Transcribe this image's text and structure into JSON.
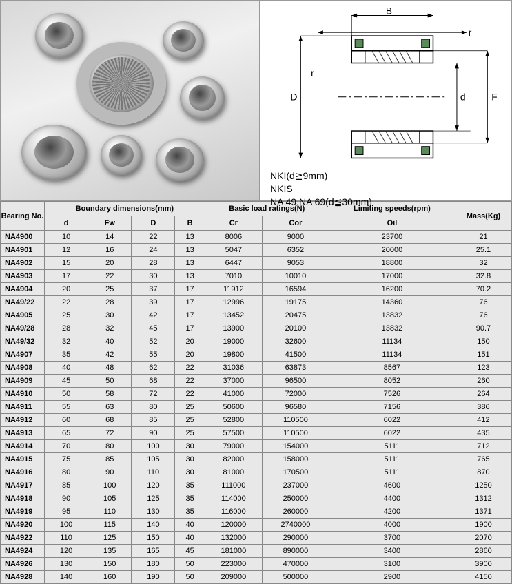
{
  "diagram": {
    "label_B": "B",
    "label_r1": "r",
    "label_r2": "r",
    "label_D": "D",
    "label_d": "d",
    "label_F": "F",
    "line1": "NKI(d≧9mm)",
    "line2": "NKIS",
    "line3": "NA 49.NA 69(d≦30mm)"
  },
  "table": {
    "header": {
      "bearing_no": "Bearing No.",
      "boundary": "Boundary dimensions(mm)",
      "basic_load": "Basic load ratings(N)",
      "limiting": "Limiting speeds(rpm)",
      "mass": "Mass(Kg)",
      "d": "d",
      "Fw": "Fw",
      "D": "D",
      "B": "B",
      "Cr": "Cr",
      "Cor": "Cor",
      "Oil": "Oil"
    },
    "rows": [
      [
        "NA4900",
        "10",
        "14",
        "22",
        "13",
        "8006",
        "9000",
        "23700",
        "21"
      ],
      [
        "NA4901",
        "12",
        "16",
        "24",
        "13",
        "5047",
        "6352",
        "20000",
        "25.1"
      ],
      [
        "NA4902",
        "15",
        "20",
        "28",
        "13",
        "6447",
        "9053",
        "18800",
        "32"
      ],
      [
        "NA4903",
        "17",
        "22",
        "30",
        "13",
        "7010",
        "10010",
        "17000",
        "32.8"
      ],
      [
        "NA4904",
        "20",
        "25",
        "37",
        "17",
        "11912",
        "16594",
        "16200",
        "70.2"
      ],
      [
        "NA49/22",
        "22",
        "28",
        "39",
        "17",
        "12996",
        "19175",
        "14360",
        "76"
      ],
      [
        "NA4905",
        "25",
        "30",
        "42",
        "17",
        "13452",
        "20475",
        "13832",
        "76"
      ],
      [
        "NA49/28",
        "28",
        "32",
        "45",
        "17",
        "13900",
        "20100",
        "13832",
        "90.7"
      ],
      [
        "NA49/32",
        "32",
        "40",
        "52",
        "20",
        "19000",
        "32600",
        "11134",
        "150"
      ],
      [
        "NA4907",
        "35",
        "42",
        "55",
        "20",
        "19800",
        "41500",
        "11134",
        "151"
      ],
      [
        "NA4908",
        "40",
        "48",
        "62",
        "22",
        "31036",
        "63873",
        "8567",
        "123"
      ],
      [
        "NA4909",
        "45",
        "50",
        "68",
        "22",
        "37000",
        "96500",
        "8052",
        "260"
      ],
      [
        "NA4910",
        "50",
        "58",
        "72",
        "22",
        "41000",
        "72000",
        "7526",
        "264"
      ],
      [
        "NA4911",
        "55",
        "63",
        "80",
        "25",
        "50600",
        "96580",
        "7156",
        "386"
      ],
      [
        "NA4912",
        "60",
        "68",
        "85",
        "25",
        "52800",
        "110500",
        "6022",
        "412"
      ],
      [
        "NA4913",
        "65",
        "72",
        "90",
        "25",
        "57500",
        "110500",
        "6022",
        "435"
      ],
      [
        "NA4914",
        "70",
        "80",
        "100",
        "30",
        "79000",
        "154000",
        "5111",
        "712"
      ],
      [
        "NA4915",
        "75",
        "85",
        "105",
        "30",
        "82000",
        "158000",
        "5111",
        "765"
      ],
      [
        "NA4916",
        "80",
        "90",
        "110",
        "30",
        "81000",
        "170500",
        "5111",
        "870"
      ],
      [
        "NA4917",
        "85",
        "100",
        "120",
        "35",
        "111000",
        "237000",
        "4600",
        "1250"
      ],
      [
        "NA4918",
        "90",
        "105",
        "125",
        "35",
        "114000",
        "250000",
        "4400",
        "1312"
      ],
      [
        "NA4919",
        "95",
        "110",
        "130",
        "35",
        "116000",
        "260000",
        "4200",
        "1371"
      ],
      [
        "NA4920",
        "100",
        "115",
        "140",
        "40",
        "120000",
        "2740000",
        "4000",
        "1900"
      ],
      [
        "NA4922",
        "110",
        "125",
        "150",
        "40",
        "132000",
        "290000",
        "3700",
        "2070"
      ],
      [
        "NA4924",
        "120",
        "135",
        "165",
        "45",
        "181000",
        "890000",
        "3400",
        "2860"
      ],
      [
        "NA4926",
        "130",
        "150",
        "180",
        "50",
        "223000",
        "470000",
        "3100",
        "3900"
      ],
      [
        "NA4928",
        "140",
        "160",
        "190",
        "50",
        "209000",
        "500000",
        "2900",
        "4150"
      ]
    ]
  },
  "style": {
    "header_bg": "#e8e8e8",
    "cell_bg": "#e8e8e8",
    "border_color": "#888888",
    "font_size": 11,
    "diagram_outline": "#000000",
    "diagram_fill": "#5a8a5a",
    "diagram_hatch": "#333333"
  }
}
